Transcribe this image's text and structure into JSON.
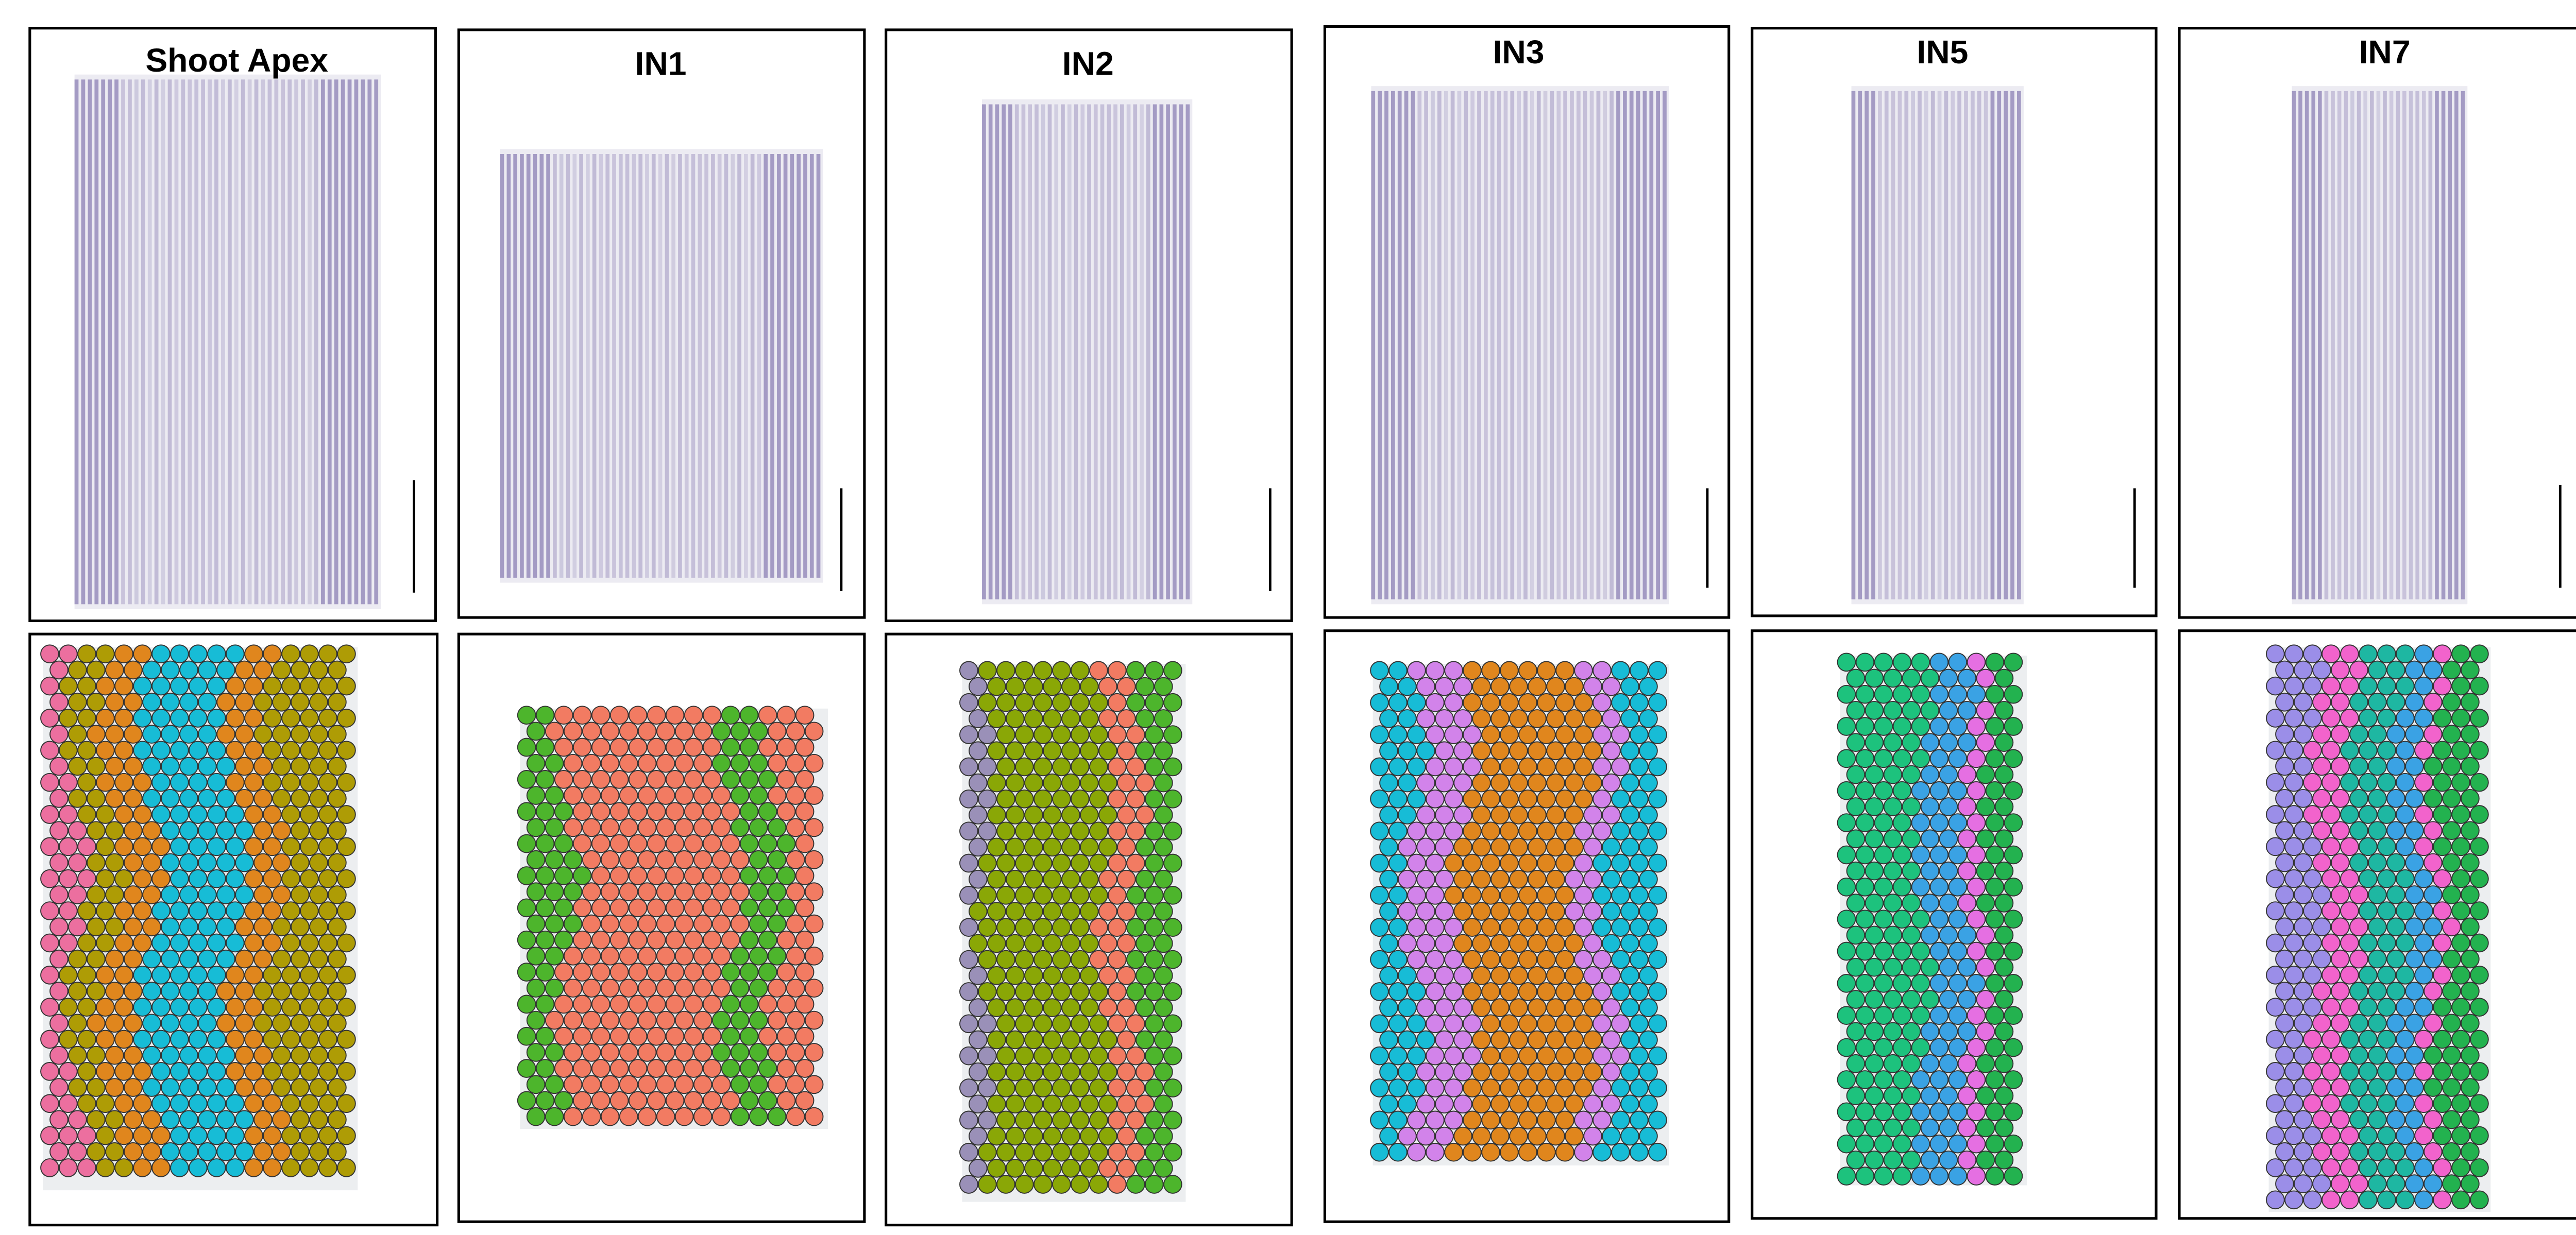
{
  "panels": [
    {
      "label": "Shoot Apex"
    },
    {
      "label": "IN1"
    },
    {
      "label": "IN2"
    },
    {
      "label": "IN3"
    },
    {
      "label": "IN5"
    },
    {
      "label": "IN7"
    }
  ]
}
